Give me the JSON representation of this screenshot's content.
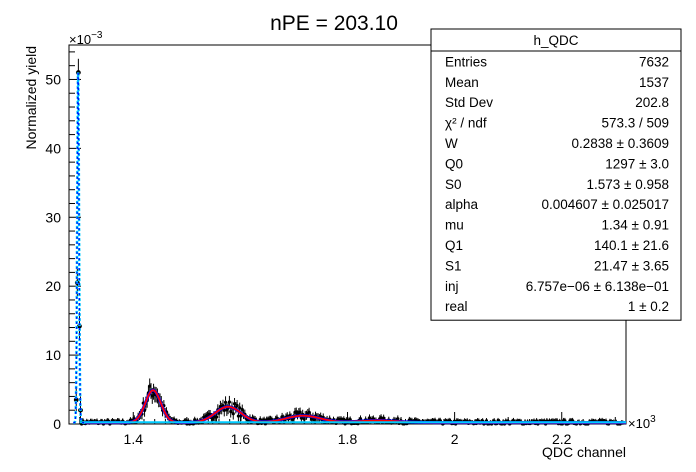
{
  "chart_data": {
    "type": "scatter",
    "title": "nPE = 203.10",
    "xlabel": "QDC channel",
    "ylabel": "Normalized yield",
    "x_multiplier": "×10",
    "x_multiplier_exp": "3",
    "y_multiplier": "×10",
    "y_multiplier_exp": "−3",
    "xlim": [
      1.28,
      2.32
    ],
    "ylim": [
      0,
      55
    ],
    "x_ticks": [
      1.4,
      1.6,
      1.8,
      2.0,
      2.2
    ],
    "x_tick_labels": [
      "1.4",
      "1.6",
      "1.8",
      "2",
      "2.2"
    ],
    "y_ticks": [
      0,
      10,
      20,
      30,
      40,
      50
    ],
    "y_tick_labels": [
      "0",
      "10",
      "20",
      "30",
      "40",
      "50"
    ],
    "grid": false,
    "legend": "top-right",
    "colors": {
      "data": "#000000",
      "fit_total": "#ff0000",
      "fit_components": "#0000ff",
      "pedestal": "#00ccff"
    },
    "pedestal_peak": {
      "x": 1.297,
      "y": 51.0
    },
    "peaks": [
      {
        "x": 1.437,
        "height": 4.7,
        "sigma": 0.0145
      },
      {
        "x": 1.577,
        "height": 2.3,
        "sigma": 0.024
      },
      {
        "x": 1.717,
        "height": 1.0,
        "sigma": 0.032
      },
      {
        "x": 1.857,
        "height": 0.3,
        "sigma": 0.038
      }
    ],
    "stats_box": {
      "title": "h_QDC",
      "rows": [
        {
          "label": "Entries",
          "value": "7632"
        },
        {
          "label": "Mean",
          "value": "1537"
        },
        {
          "label": "Std Dev",
          "value": "202.8"
        },
        {
          "label": "χ² / ndf",
          "value": "573.3 / 509"
        },
        {
          "label": "W",
          "value": "0.2838 ± 0.3609"
        },
        {
          "label": "Q0",
          "value": "1297 ± 3.0"
        },
        {
          "label": "S0",
          "value": "1.573 ± 0.958"
        },
        {
          "label": "alpha",
          "value": "0.004607 ± 0.025017"
        },
        {
          "label": "mu",
          "value": "1.34 ± 0.91"
        },
        {
          "label": "Q1",
          "value": "140.1 ± 21.6"
        },
        {
          "label": "S1",
          "value": "21.47 ± 3.65"
        },
        {
          "label": "inj",
          "value": "6.757e−06 ± 6.138e−01"
        },
        {
          "label": "real",
          "value": "1 ± 0.2"
        }
      ]
    }
  }
}
